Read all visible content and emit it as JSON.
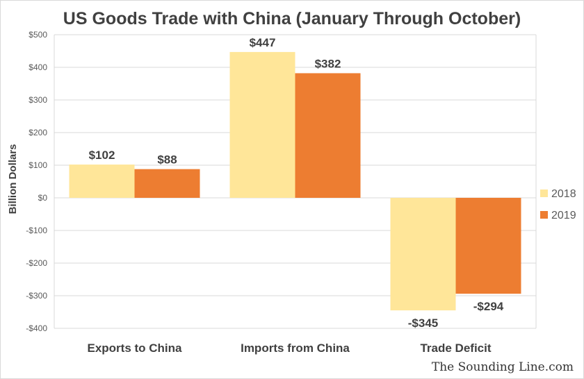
{
  "chart_data": {
    "type": "bar",
    "title": "US Goods Trade with China (January Through October)",
    "ylabel": "Billion Dollars",
    "xlabel": "",
    "categories": [
      "Exports to China",
      "Imports from China",
      "Trade Deficit"
    ],
    "series": [
      {
        "name": "2018",
        "color": "#FFE699",
        "values": [
          102,
          447,
          -345
        ],
        "labels": [
          "$102",
          "$447",
          "-$345"
        ]
      },
      {
        "name": "2019",
        "color": "#ED7D31",
        "values": [
          88,
          382,
          -294
        ],
        "labels": [
          "$88",
          "$382",
          "-$294"
        ]
      }
    ],
    "ylim": [
      -400,
      500
    ],
    "yticks": [
      500,
      400,
      300,
      200,
      100,
      0,
      -100,
      -200,
      -300,
      -400
    ],
    "ytick_labels": [
      "$500",
      "$400",
      "$300",
      "$200",
      "$100",
      "$0",
      "-$100",
      "-$200",
      "-$300",
      "-$400"
    ],
    "grid": true,
    "legend": "right"
  },
  "credit": "The Sounding Line.com"
}
